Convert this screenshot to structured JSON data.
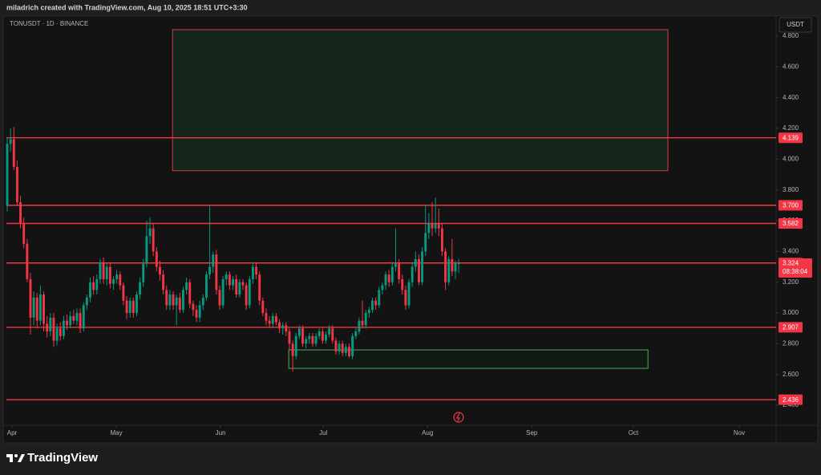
{
  "header": "miladrich created with TradingView.com, Aug 10, 2025 18:51 UTC+3:30",
  "footer": "TradingView",
  "chart_data": {
    "type": "candlestick",
    "title": "TONUSDT · 1D · BINANCE",
    "currency": "USDT",
    "up_color": "#089981",
    "down_color": "#f23645",
    "candles": [
      [
        3.7,
        4.14,
        3.66,
        4.1
      ],
      [
        4.1,
        4.2,
        4.05,
        4.13
      ],
      [
        4.13,
        4.21,
        3.93,
        3.95
      ],
      [
        3.95,
        3.99,
        3.7,
        3.72
      ],
      [
        3.72,
        3.76,
        3.55,
        3.58
      ],
      [
        3.58,
        3.62,
        3.42,
        3.45
      ],
      [
        3.45,
        3.48,
        3.2,
        3.22
      ],
      [
        3.22,
        3.26,
        2.86,
        2.97
      ],
      [
        2.97,
        3.14,
        2.92,
        3.1
      ],
      [
        3.1,
        3.13,
        2.9,
        2.95
      ],
      [
        2.95,
        3.18,
        2.92,
        3.12
      ],
      [
        3.12,
        3.14,
        2.88,
        2.93
      ],
      [
        2.93,
        2.98,
        2.84,
        2.88
      ],
      [
        2.88,
        3.0,
        2.85,
        2.97
      ],
      [
        2.97,
        3.0,
        2.78,
        2.82
      ],
      [
        2.82,
        2.93,
        2.79,
        2.9
      ],
      [
        2.9,
        2.94,
        2.82,
        2.85
      ],
      [
        2.85,
        2.98,
        2.83,
        2.95
      ],
      [
        2.95,
        2.99,
        2.89,
        2.92
      ],
      [
        2.92,
        3.01,
        2.9,
        2.98
      ],
      [
        2.98,
        3.02,
        2.93,
        2.95
      ],
      [
        2.95,
        3.03,
        2.92,
        3.0
      ],
      [
        3.0,
        3.03,
        2.87,
        2.9
      ],
      [
        2.9,
        3.07,
        2.88,
        3.05
      ],
      [
        3.05,
        3.12,
        3.02,
        3.1
      ],
      [
        3.1,
        3.23,
        3.07,
        3.2
      ],
      [
        3.2,
        3.24,
        3.12,
        3.15
      ],
      [
        3.15,
        3.25,
        3.12,
        3.22
      ],
      [
        3.22,
        3.35,
        3.19,
        3.33
      ],
      [
        3.33,
        3.36,
        3.19,
        3.22
      ],
      [
        3.22,
        3.32,
        3.18,
        3.3
      ],
      [
        3.3,
        3.33,
        3.16,
        3.19
      ],
      [
        3.19,
        3.24,
        3.15,
        3.22
      ],
      [
        3.22,
        3.28,
        3.19,
        3.25
      ],
      [
        3.25,
        3.27,
        3.15,
        3.18
      ],
      [
        3.18,
        3.2,
        3.05,
        3.08
      ],
      [
        3.08,
        3.11,
        2.96,
        3.0
      ],
      [
        3.0,
        3.1,
        2.97,
        3.08
      ],
      [
        3.08,
        3.1,
        2.97,
        3.0
      ],
      [
        3.0,
        3.14,
        2.98,
        3.12
      ],
      [
        3.12,
        3.23,
        3.09,
        3.2
      ],
      [
        3.2,
        3.35,
        3.17,
        3.32
      ],
      [
        3.32,
        3.6,
        3.3,
        3.5
      ],
      [
        3.5,
        3.62,
        3.45,
        3.55
      ],
      [
        3.55,
        3.58,
        3.37,
        3.4
      ],
      [
        3.4,
        3.43,
        3.27,
        3.3
      ],
      [
        3.3,
        3.34,
        3.21,
        3.25
      ],
      [
        3.25,
        3.28,
        3.12,
        3.15
      ],
      [
        3.15,
        3.18,
        3.02,
        3.05
      ],
      [
        3.05,
        3.15,
        3.02,
        3.12
      ],
      [
        3.12,
        3.14,
        3.02,
        3.05
      ],
      [
        3.05,
        3.12,
        2.92,
        3.1
      ],
      [
        3.1,
        3.13,
        3.0,
        3.02
      ],
      [
        3.02,
        3.17,
        3.0,
        3.15
      ],
      [
        3.15,
        3.23,
        3.12,
        3.2
      ],
      [
        3.2,
        3.22,
        3.03,
        3.06
      ],
      [
        3.06,
        3.08,
        2.98,
        3.02
      ],
      [
        3.02,
        3.05,
        2.94,
        2.97
      ],
      [
        2.97,
        3.08,
        2.94,
        3.05
      ],
      [
        3.05,
        3.12,
        3.02,
        3.1
      ],
      [
        3.1,
        3.27,
        3.08,
        3.25
      ],
      [
        3.25,
        3.7,
        3.22,
        3.3
      ],
      [
        3.3,
        3.4,
        3.26,
        3.38
      ],
      [
        3.38,
        3.41,
        3.12,
        3.15
      ],
      [
        3.15,
        3.18,
        3.02,
        3.05
      ],
      [
        3.05,
        3.24,
        3.03,
        3.22
      ],
      [
        3.22,
        3.27,
        3.18,
        3.25
      ],
      [
        3.25,
        3.27,
        3.15,
        3.18
      ],
      [
        3.18,
        3.24,
        3.15,
        3.22
      ],
      [
        3.22,
        3.25,
        3.1,
        3.12
      ],
      [
        3.12,
        3.22,
        3.1,
        3.2
      ],
      [
        3.2,
        3.22,
        3.15,
        3.18
      ],
      [
        3.18,
        3.2,
        3.02,
        3.05
      ],
      [
        3.05,
        3.24,
        3.03,
        3.22
      ],
      [
        3.22,
        3.33,
        3.19,
        3.3
      ],
      [
        3.3,
        3.33,
        3.22,
        3.25
      ],
      [
        3.25,
        3.27,
        3.05,
        3.08
      ],
      [
        3.08,
        3.1,
        2.98,
        3.0
      ],
      [
        3.0,
        3.03,
        2.92,
        2.95
      ],
      [
        2.95,
        2.98,
        2.9,
        2.93
      ],
      [
        2.93,
        3.0,
        2.91,
        2.98
      ],
      [
        2.98,
        3.0,
        2.92,
        2.94
      ],
      [
        2.94,
        2.96,
        2.87,
        2.9
      ],
      [
        2.9,
        2.94,
        2.86,
        2.92
      ],
      [
        2.92,
        2.94,
        2.85,
        2.88
      ],
      [
        2.88,
        2.9,
        2.76,
        2.8
      ],
      [
        2.8,
        2.82,
        2.62,
        2.72
      ],
      [
        2.72,
        2.87,
        2.7,
        2.85
      ],
      [
        2.85,
        2.92,
        2.83,
        2.9
      ],
      [
        2.9,
        2.92,
        2.78,
        2.8
      ],
      [
        2.8,
        2.85,
        2.77,
        2.83
      ],
      [
        2.83,
        2.87,
        2.8,
        2.85
      ],
      [
        2.85,
        2.87,
        2.78,
        2.8
      ],
      [
        2.8,
        2.87,
        2.78,
        2.85
      ],
      [
        2.85,
        2.9,
        2.83,
        2.88
      ],
      [
        2.88,
        2.9,
        2.8,
        2.82
      ],
      [
        2.82,
        2.88,
        2.8,
        2.86
      ],
      [
        2.86,
        2.92,
        2.84,
        2.9
      ],
      [
        2.9,
        2.92,
        2.8,
        2.82
      ],
      [
        2.82,
        2.84,
        2.73,
        2.75
      ],
      [
        2.75,
        2.82,
        2.73,
        2.8
      ],
      [
        2.8,
        2.82,
        2.72,
        2.74
      ],
      [
        2.74,
        2.8,
        2.72,
        2.78
      ],
      [
        2.78,
        2.8,
        2.71,
        2.72
      ],
      [
        2.72,
        2.87,
        2.7,
        2.85
      ],
      [
        2.85,
        2.9,
        2.83,
        2.88
      ],
      [
        2.88,
        2.97,
        2.86,
        2.95
      ],
      [
        2.95,
        3.08,
        2.9,
        2.92
      ],
      [
        2.92,
        3.02,
        2.9,
        3.0
      ],
      [
        3.0,
        3.04,
        2.97,
        3.02
      ],
      [
        3.02,
        3.1,
        3.0,
        3.08
      ],
      [
        3.08,
        3.1,
        3.02,
        3.05
      ],
      [
        3.05,
        3.17,
        3.03,
        3.15
      ],
      [
        3.15,
        3.2,
        3.12,
        3.18
      ],
      [
        3.18,
        3.27,
        3.15,
        3.25
      ],
      [
        3.25,
        3.28,
        3.17,
        3.2
      ],
      [
        3.2,
        3.33,
        3.18,
        3.3
      ],
      [
        3.3,
        3.55,
        3.27,
        3.32
      ],
      [
        3.32,
        3.35,
        3.19,
        3.22
      ],
      [
        3.22,
        3.25,
        3.12,
        3.15
      ],
      [
        3.15,
        3.18,
        3.02,
        3.05
      ],
      [
        3.05,
        3.22,
        3.03,
        3.2
      ],
      [
        3.2,
        3.33,
        3.17,
        3.3
      ],
      [
        3.3,
        3.4,
        3.27,
        3.35
      ],
      [
        3.35,
        3.38,
        3.18,
        3.2
      ],
      [
        3.2,
        3.43,
        3.18,
        3.4
      ],
      [
        3.4,
        3.7,
        3.37,
        3.52
      ],
      [
        3.52,
        3.65,
        3.48,
        3.58
      ],
      [
        3.58,
        3.72,
        3.5,
        3.55
      ],
      [
        3.55,
        3.75,
        3.52,
        3.58
      ],
      [
        3.58,
        3.68,
        3.5,
        3.55
      ],
      [
        3.55,
        3.58,
        3.37,
        3.4
      ],
      [
        3.4,
        3.42,
        3.15,
        3.2
      ],
      [
        3.2,
        3.37,
        3.18,
        3.35
      ],
      [
        3.35,
        3.48,
        3.24,
        3.27
      ],
      [
        3.27,
        3.34,
        3.22,
        3.32
      ],
      [
        3.32,
        3.35,
        3.26,
        3.324
      ]
    ],
    "xlim": [
      -0.24,
      231.6
    ],
    "xticks": [
      {
        "value": 1.45,
        "label": "Apr"
      },
      {
        "value": 32.85,
        "label": "May"
      },
      {
        "value": 64.25,
        "label": "Jun"
      },
      {
        "value": 95.2,
        "label": "Jul"
      },
      {
        "value": 126.6,
        "label": "Aug"
      },
      {
        "value": 158.0,
        "label": "Sep"
      },
      {
        "value": 188.6,
        "label": "Oct"
      },
      {
        "value": 220.5,
        "label": "Nov"
      }
    ],
    "ylim": [
      2.27,
      4.92
    ],
    "yticks": [
      {
        "value": 2.4,
        "label": "2.400"
      },
      {
        "value": 2.6,
        "label": "2.600"
      },
      {
        "value": 2.8,
        "label": "2.800"
      },
      {
        "value": 3.0,
        "label": "3.000"
      },
      {
        "value": 3.2,
        "label": "3.200"
      },
      {
        "value": 3.4,
        "label": "3.400"
      },
      {
        "value": 3.6,
        "label": "3.600"
      },
      {
        "value": 3.8,
        "label": "3.800"
      },
      {
        "value": 4.0,
        "label": "4.000"
      },
      {
        "value": 4.2,
        "label": "4.200"
      },
      {
        "value": 4.4,
        "label": "4.400"
      },
      {
        "value": 4.6,
        "label": "4.600"
      },
      {
        "value": 4.8,
        "label": "4.800"
      }
    ],
    "level_color": "#f23645",
    "levels": [
      4.139,
      {
        "value": 3.7,
        "label": "3.700"
      },
      3.582,
      3.325,
      2.907,
      2.436
    ],
    "last_price": {
      "value": 3.324,
      "countdown": "08:38:04"
    },
    "zones": [
      {
        "x": [
          49.8,
          199.0
        ],
        "y": [
          3.925,
          4.842
        ],
        "fill": "#15261a",
        "border": "#d43a4a"
      },
      {
        "x": [
          84.8,
          193.0
        ],
        "y": [
          2.64,
          2.76
        ],
        "fill": "#101a12",
        "border": "#4caf50"
      }
    ]
  }
}
